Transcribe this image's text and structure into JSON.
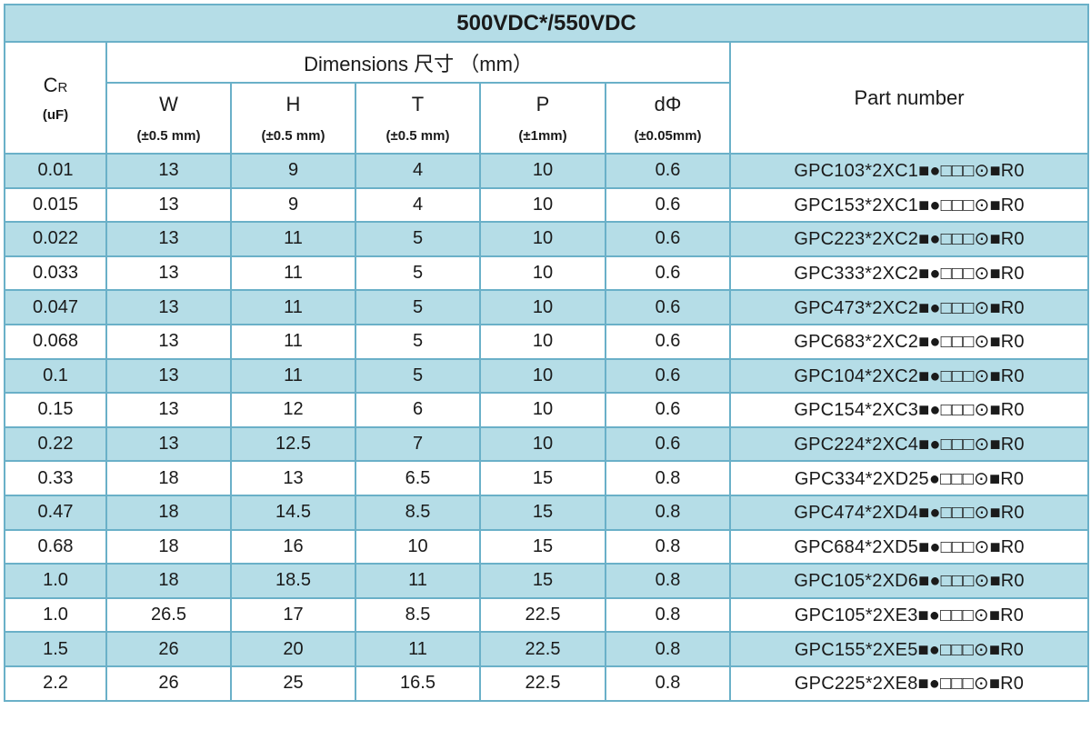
{
  "title": "500VDC*/550VDC",
  "header": {
    "cr_label": "C",
    "cr_sub": "R",
    "cr_unit": "(uF)",
    "dimensions_label": "Dimensions 尺寸 （mm）",
    "part_number_label": "Part number",
    "columns": [
      {
        "name": "W",
        "tolerance": "(±0.5 mm)"
      },
      {
        "name": "H",
        "tolerance": "(±0.5 mm)"
      },
      {
        "name": "T",
        "tolerance": "(±0.5 mm)"
      },
      {
        "name": "P",
        "tolerance": "(±1mm)"
      },
      {
        "name": "dΦ",
        "tolerance": "(±0.05mm)"
      }
    ]
  },
  "rows": [
    {
      "cr": "0.01",
      "w": "13",
      "h": "9",
      "t": "4",
      "p": "10",
      "d": "0.6",
      "part": "GPC103*2XC1■●□□□⊙■R0"
    },
    {
      "cr": "0.015",
      "w": "13",
      "h": "9",
      "t": "4",
      "p": "10",
      "d": "0.6",
      "part": "GPC153*2XC1■●□□□⊙■R0"
    },
    {
      "cr": "0.022",
      "w": "13",
      "h": "11",
      "t": "5",
      "p": "10",
      "d": "0.6",
      "part": "GPC223*2XC2■●□□□⊙■R0"
    },
    {
      "cr": "0.033",
      "w": "13",
      "h": "11",
      "t": "5",
      "p": "10",
      "d": "0.6",
      "part": "GPC333*2XC2■●□□□⊙■R0"
    },
    {
      "cr": "0.047",
      "w": "13",
      "h": "11",
      "t": "5",
      "p": "10",
      "d": "0.6",
      "part": "GPC473*2XC2■●□□□⊙■R0"
    },
    {
      "cr": "0.068",
      "w": "13",
      "h": "11",
      "t": "5",
      "p": "10",
      "d": "0.6",
      "part": "GPC683*2XC2■●□□□⊙■R0"
    },
    {
      "cr": "0.1",
      "w": "13",
      "h": "11",
      "t": "5",
      "p": "10",
      "d": "0.6",
      "part": "GPC104*2XC2■●□□□⊙■R0"
    },
    {
      "cr": "0.15",
      "w": "13",
      "h": "12",
      "t": "6",
      "p": "10",
      "d": "0.6",
      "part": "GPC154*2XC3■●□□□⊙■R0"
    },
    {
      "cr": "0.22",
      "w": "13",
      "h": "12.5",
      "t": "7",
      "p": "10",
      "d": "0.6",
      "part": "GPC224*2XC4■●□□□⊙■R0"
    },
    {
      "cr": "0.33",
      "w": "18",
      "h": "13",
      "t": "6.5",
      "p": "15",
      "d": "0.8",
      "part": "GPC334*2XD25●□□□⊙■R0"
    },
    {
      "cr": "0.47",
      "w": "18",
      "h": "14.5",
      "t": "8.5",
      "p": "15",
      "d": "0.8",
      "part": "GPC474*2XD4■●□□□⊙■R0"
    },
    {
      "cr": "0.68",
      "w": "18",
      "h": "16",
      "t": "10",
      "p": "15",
      "d": "0.8",
      "part": "GPC684*2XD5■●□□□⊙■R0"
    },
    {
      "cr": "1.0",
      "w": "18",
      "h": "18.5",
      "t": "11",
      "p": "15",
      "d": "0.8",
      "part": "GPC105*2XD6■●□□□⊙■R0"
    },
    {
      "cr": "1.0",
      "w": "26.5",
      "h": "17",
      "t": "8.5",
      "p": "22.5",
      "d": "0.8",
      "part": "GPC105*2XE3■●□□□⊙■R0"
    },
    {
      "cr": "1.5",
      "w": "26",
      "h": "20",
      "t": "11",
      "p": "22.5",
      "d": "0.8",
      "part": "GPC155*2XE5■●□□□⊙■R0"
    },
    {
      "cr": "2.2",
      "w": "26",
      "h": "25",
      "t": "16.5",
      "p": "22.5",
      "d": "0.8",
      "part": "GPC225*2XE8■●□□□⊙■R0"
    }
  ]
}
